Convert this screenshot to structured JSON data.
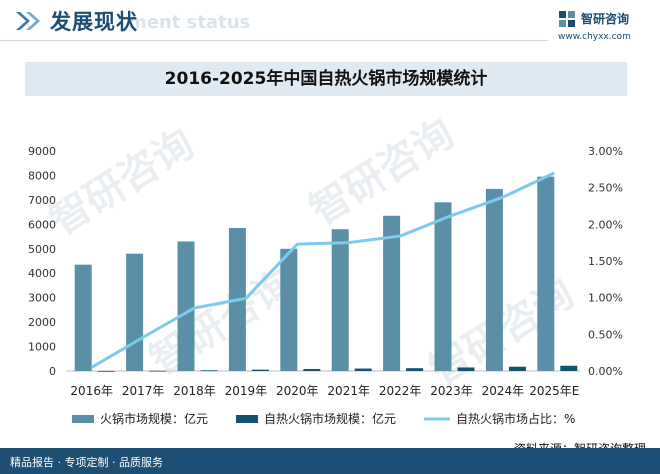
{
  "header": {
    "title": "发展现状",
    "ghost_text": "ment status",
    "logo_name": "智研咨询",
    "logo_url": "www.chyxx.com"
  },
  "watermark_text": "智研咨询",
  "footer": {
    "tags": "精品报告 · 专项定制 · 品质服务",
    "source": "资料来源：智研咨询整理"
  },
  "colors": {
    "bar_market": "#5b8fa8",
    "bar_self_heating": "#14536f",
    "line_share": "#7ccbea",
    "title_bar": "#dfeaf3",
    "footer": "#1d4e73"
  },
  "chart_data": {
    "type": "bar",
    "title": "2016-2025年中国自热火锅市场规模统计",
    "categories": [
      "2016年",
      "2017年",
      "2018年",
      "2019年",
      "2020年",
      "2021年",
      "2022年",
      "2023年",
      "2024年",
      "2025年E"
    ],
    "series": [
      {
        "name": "火锅市场规模：亿元",
        "type": "bar",
        "axis": "left",
        "values": [
          4350,
          4800,
          5300,
          5850,
          5000,
          5800,
          6350,
          6900,
          7450,
          7950
        ]
      },
      {
        "name": "自热火锅市场规模：亿元",
        "type": "bar",
        "axis": "left",
        "values": [
          2,
          10,
          30,
          55,
          80,
          100,
          115,
          145,
          175,
          215
        ]
      },
      {
        "name": "自热火锅市场占比：%",
        "type": "line",
        "axis": "right",
        "values": [
          0.05,
          0.46,
          0.86,
          0.99,
          1.73,
          1.75,
          1.84,
          2.12,
          2.37,
          2.7
        ]
      }
    ],
    "left_axis": {
      "min": 0,
      "max": 9000,
      "ticks": [
        "0",
        "1000",
        "2000",
        "3000",
        "4000",
        "5000",
        "6000",
        "7000",
        "8000",
        "9000"
      ]
    },
    "right_axis": {
      "min": 0,
      "max": 3.0,
      "ticks": [
        "0.00%",
        "0.50%",
        "1.00%",
        "1.50%",
        "2.00%",
        "2.50%",
        "3.00%"
      ]
    },
    "grid": false,
    "legend_position": "bottom"
  }
}
